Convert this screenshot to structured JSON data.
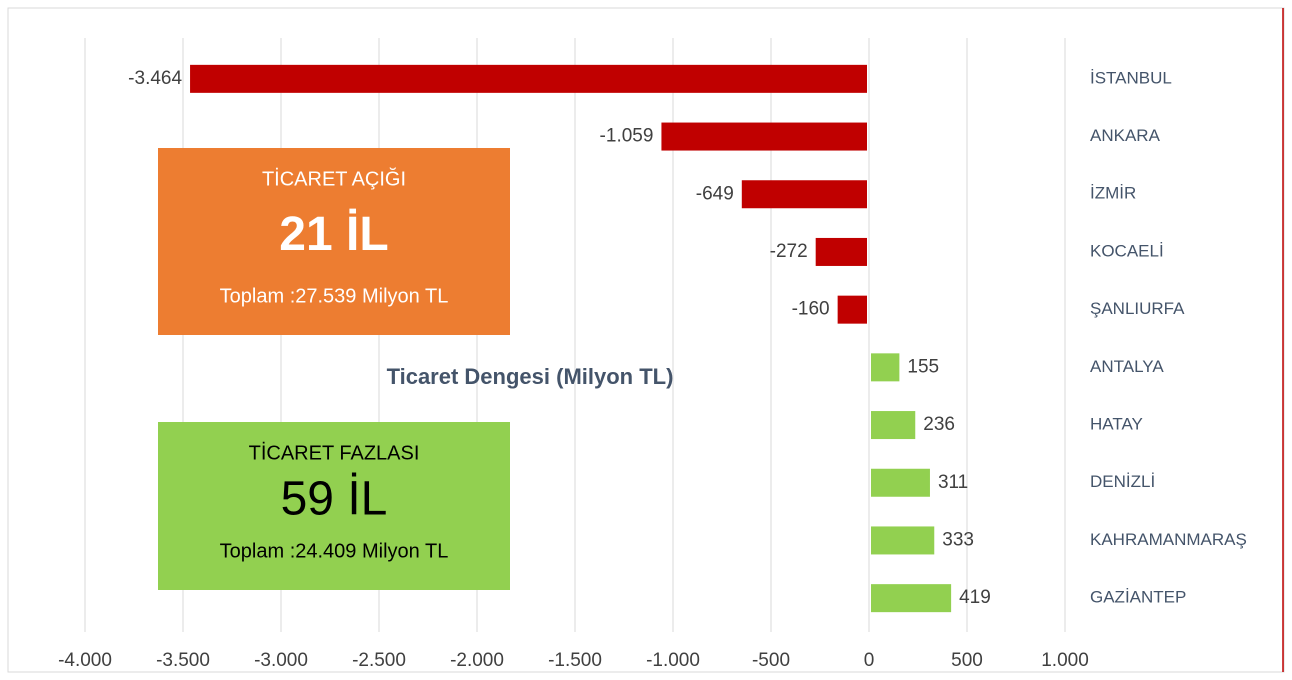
{
  "chart_data": {
    "type": "bar",
    "orientation": "horizontal",
    "title": "Ticaret Dengesi (Milyon TL)",
    "categories": [
      "İSTANBUL",
      "ANKARA",
      "İZMİR",
      "KOCAELİ",
      "ŞANLIURFA",
      "ANTALYA",
      "HATAY",
      "DENİZLİ",
      "KAHRAMANMARAŞ",
      "GAZİANTEP"
    ],
    "values": [
      -3464,
      -1059,
      -649,
      -272,
      -160,
      155,
      236,
      311,
      333,
      419
    ],
    "value_labels": [
      "-3.464",
      "-1.059",
      "-649",
      "-272",
      "-160",
      "155",
      "236",
      "311",
      "333",
      "419"
    ],
    "negative_color": "#c00000",
    "positive_color": "#92d050",
    "xlim": [
      -4000,
      1000
    ],
    "xticks": [
      {
        "value": -4000,
        "label": "-4.000"
      },
      {
        "value": -3500,
        "label": "-3.500"
      },
      {
        "value": -3000,
        "label": "-3.000"
      },
      {
        "value": -2500,
        "label": "-2.500"
      },
      {
        "value": -2000,
        "label": "-2.000"
      },
      {
        "value": -1500,
        "label": "-1.500"
      },
      {
        "value": -1000,
        "label": "-1.000"
      },
      -500,
      0,
      500,
      {
        "value": 1000,
        "label": "1.000"
      }
    ],
    "grid": true,
    "annotations": [
      {
        "heading": "TİCARET AÇIĞI",
        "count": "21 İL",
        "total": "Toplam :27.539 Milyon TL",
        "color": "#ed7d31",
        "text_color": "#ffffff"
      },
      {
        "heading": "TİCARET FAZLASI",
        "count": "59 İL",
        "total": "Toplam :24.409 Milyon TL",
        "color": "#92d050",
        "text_color": "#000000"
      }
    ]
  }
}
